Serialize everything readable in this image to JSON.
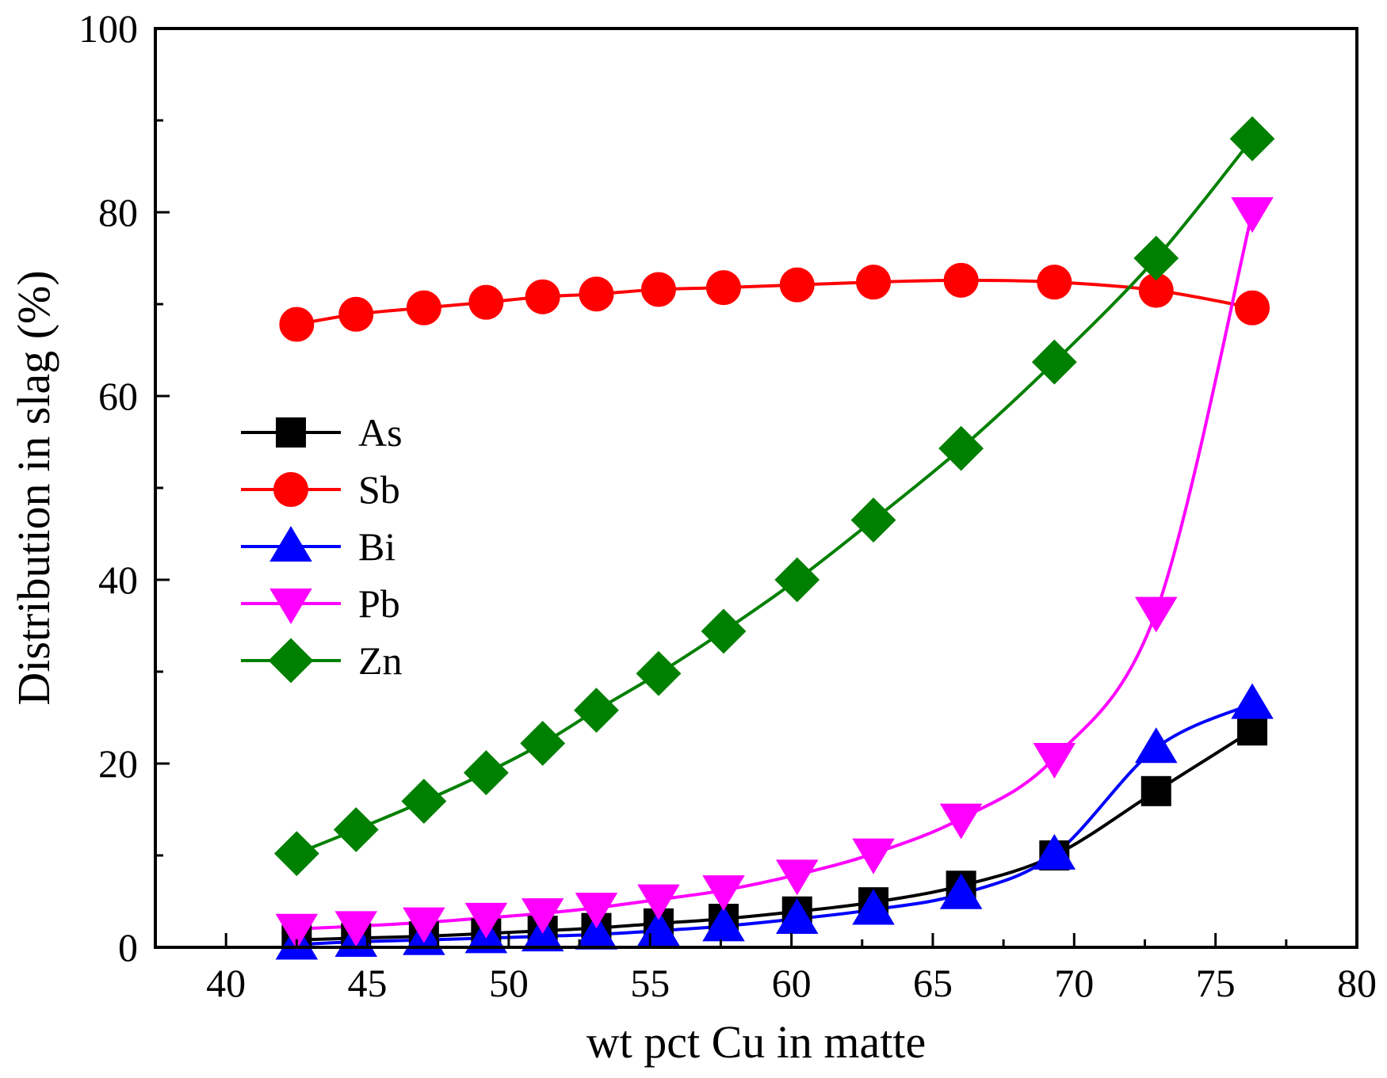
{
  "chart_data": {
    "type": "line",
    "title": "",
    "xlabel": "wt pct Cu in matte",
    "ylabel": "Distribution in slag (%)",
    "xlim": [
      37.5,
      80
    ],
    "ylim": [
      0,
      100
    ],
    "xticks": [
      40,
      45,
      50,
      55,
      60,
      65,
      70,
      75,
      80
    ],
    "yticks": [
      0,
      20,
      40,
      60,
      80,
      100
    ],
    "grid": false,
    "legend_position": "middle-left",
    "x": [
      42.5,
      44.6,
      47.0,
      49.2,
      51.2,
      53.1,
      55.3,
      57.6,
      60.2,
      62.9,
      66.0,
      69.3,
      72.9,
      76.3
    ],
    "series": [
      {
        "name": "As",
        "color": "#000000",
        "marker": "square",
        "values": [
          0.8,
          1.0,
          1.2,
          1.5,
          1.8,
          2.1,
          2.6,
          3.1,
          3.9,
          4.9,
          6.7,
          10.0,
          17.0,
          23.6
        ]
      },
      {
        "name": "Sb",
        "color": "#ff0000",
        "marker": "circle",
        "values": [
          67.8,
          68.9,
          69.6,
          70.2,
          70.8,
          71.1,
          71.6,
          71.8,
          72.1,
          72.4,
          72.6,
          72.4,
          71.5,
          69.6
        ]
      },
      {
        "name": "Bi",
        "color": "#0000ff",
        "marker": "triangle-up",
        "values": [
          0.3,
          0.6,
          0.8,
          1.0,
          1.2,
          1.4,
          1.8,
          2.3,
          3.1,
          4.1,
          5.8,
          10.1,
          21.7,
          26.5
        ]
      },
      {
        "name": "Pb",
        "color": "#ff00ff",
        "marker": "triangle-down",
        "values": [
          2.0,
          2.3,
          2.7,
          3.2,
          3.7,
          4.3,
          5.2,
          6.2,
          7.9,
          10.2,
          14.0,
          20.6,
          36.5,
          80.0
        ]
      },
      {
        "name": "Zn",
        "color": "#008000",
        "marker": "diamond",
        "values": [
          10.2,
          12.8,
          15.9,
          19.0,
          22.2,
          25.8,
          29.8,
          34.4,
          40.0,
          46.5,
          54.3,
          63.7,
          75.0,
          88.0
        ]
      }
    ]
  }
}
